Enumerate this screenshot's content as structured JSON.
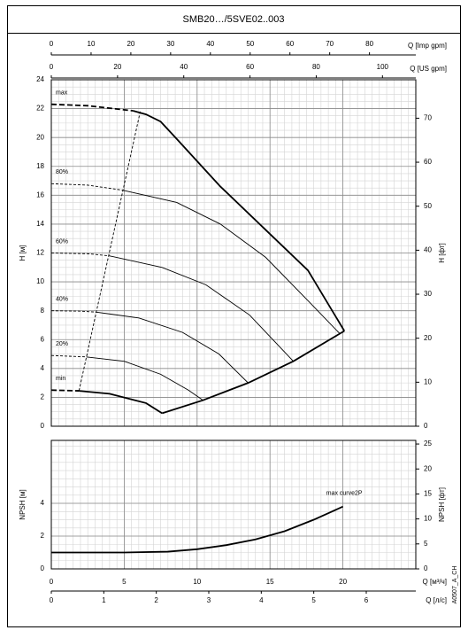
{
  "title": "SMB20…/5SVE02..003",
  "code": "A0507_A_CH",
  "chart_data": [
    {
      "type": "line",
      "ylabel": "H [м]",
      "y2label": "H [фт]",
      "xlim": [
        0,
        25
      ],
      "xticks": [
        0,
        5,
        10,
        15,
        20
      ],
      "ylim": [
        0,
        24
      ],
      "yticks": [
        0,
        2,
        4,
        6,
        8,
        10,
        12,
        14,
        16,
        18,
        20,
        22,
        24
      ],
      "y2lim": [
        0,
        78.74
      ],
      "y2ticks": [
        0,
        10,
        20,
        30,
        40,
        50,
        60,
        70
      ],
      "top_axes": [
        {
          "label": "Q [Imp gpm]",
          "lim": [
            0,
            91.65
          ],
          "ticks": [
            0,
            10,
            20,
            30,
            40,
            50,
            60,
            70,
            80
          ]
        },
        {
          "label": "Q [US gpm]",
          "lim": [
            0,
            110.07
          ],
          "ticks": [
            0,
            20,
            40,
            60,
            80,
            100
          ]
        }
      ],
      "grid": true,
      "minor_grid": [
        0.5,
        0.5
      ],
      "color": "#000000",
      "series": [
        {
          "name": "max",
          "style": "dashed",
          "weight": 2,
          "x": [
            0,
            2.5,
            5.6
          ],
          "values": [
            22.3,
            22.2,
            21.85
          ]
        },
        {
          "style": "solid",
          "weight": 2,
          "x": [
            5.6,
            6.5,
            7.5,
            8.6,
            11.6,
            14.6,
            17.6,
            20.1
          ],
          "values": [
            21.85,
            21.6,
            21.1,
            19.9,
            16.6,
            13.7,
            10.8,
            6.6
          ]
        },
        {
          "name": "80%",
          "style": "dashed",
          "weight": 1,
          "x": [
            0,
            2.5,
            4.9
          ],
          "values": [
            16.8,
            16.7,
            16.35
          ]
        },
        {
          "style": "solid",
          "weight": 1,
          "x": [
            4.9,
            8.6,
            11.6,
            14.7,
            17.7,
            19.8
          ],
          "values": [
            16.35,
            15.5,
            14.0,
            11.7,
            8.6,
            6.4
          ]
        },
        {
          "name": "60%",
          "style": "dashed",
          "weight": 1,
          "x": [
            0,
            2.5,
            4.0
          ],
          "values": [
            12.0,
            11.95,
            11.8
          ]
        },
        {
          "style": "solid",
          "weight": 1,
          "x": [
            4.0,
            7.6,
            10.6,
            13.6,
            16.6
          ],
          "values": [
            11.8,
            11.0,
            9.8,
            7.7,
            4.5
          ]
        },
        {
          "name": "40%",
          "style": "dashed",
          "weight": 1,
          "x": [
            0,
            2.0,
            3.1
          ],
          "values": [
            8.0,
            7.97,
            7.9
          ]
        },
        {
          "style": "solid",
          "weight": 1,
          "x": [
            3.1,
            6,
            9,
            11.5,
            13.5
          ],
          "values": [
            7.9,
            7.5,
            6.5,
            5.0,
            3.0
          ]
        },
        {
          "name": "20%",
          "style": "dashed",
          "weight": 1,
          "x": [
            0,
            2.4
          ],
          "values": [
            4.9,
            4.8
          ]
        },
        {
          "style": "solid",
          "weight": 1,
          "x": [
            2.4,
            5,
            7.5,
            9.4,
            10.4
          ],
          "values": [
            4.8,
            4.5,
            3.6,
            2.5,
            1.8
          ]
        },
        {
          "name": "min",
          "style": "dashed",
          "weight": 2,
          "x": [
            0,
            1.9
          ],
          "values": [
            2.5,
            2.45
          ]
        },
        {
          "style": "solid",
          "weight": 2,
          "x": [
            1.9,
            4,
            6.5,
            7.6
          ],
          "values": [
            2.45,
            2.25,
            1.6,
            0.9
          ]
        },
        {
          "style": "solid",
          "weight": 2,
          "x": [
            7.6,
            10.4,
            13.5,
            16.6,
            20.1
          ],
          "values": [
            0.9,
            1.8,
            3.0,
            4.5,
            6.6
          ]
        },
        {
          "style": "dashed",
          "weight": 1,
          "x": [
            1.9,
            6.1
          ],
          "values": [
            2.45,
            21.8
          ]
        }
      ]
    },
    {
      "type": "line",
      "ylabel": "NPSH [м]",
      "y2label": "NPSH [фт]",
      "xlabel": "Q [м³/ч]",
      "xlim": [
        0,
        25
      ],
      "xticks": [
        0,
        5,
        10,
        15,
        20
      ],
      "ylim": [
        0,
        7.84
      ],
      "yticks": [
        0,
        2,
        4
      ],
      "y2lim": [
        0,
        25.72
      ],
      "y2ticks": [
        0,
        5,
        10,
        15,
        20,
        25
      ],
      "bottom_axis": {
        "label": "Q [л/с]",
        "lim": [
          0,
          6.944
        ],
        "ticks": [
          0,
          1,
          2,
          3,
          4,
          5,
          6
        ]
      },
      "grid": true,
      "minor_grid": [
        0.5,
        0.5
      ],
      "color": "#000000",
      "series": [
        {
          "name": "max curve2P",
          "style": "solid",
          "weight": 2,
          "x": [
            0,
            5,
            8,
            10,
            12,
            14,
            16,
            18,
            20
          ],
          "values": [
            1.0,
            1.0,
            1.05,
            1.2,
            1.45,
            1.8,
            2.3,
            3.0,
            3.8
          ]
        }
      ]
    }
  ]
}
